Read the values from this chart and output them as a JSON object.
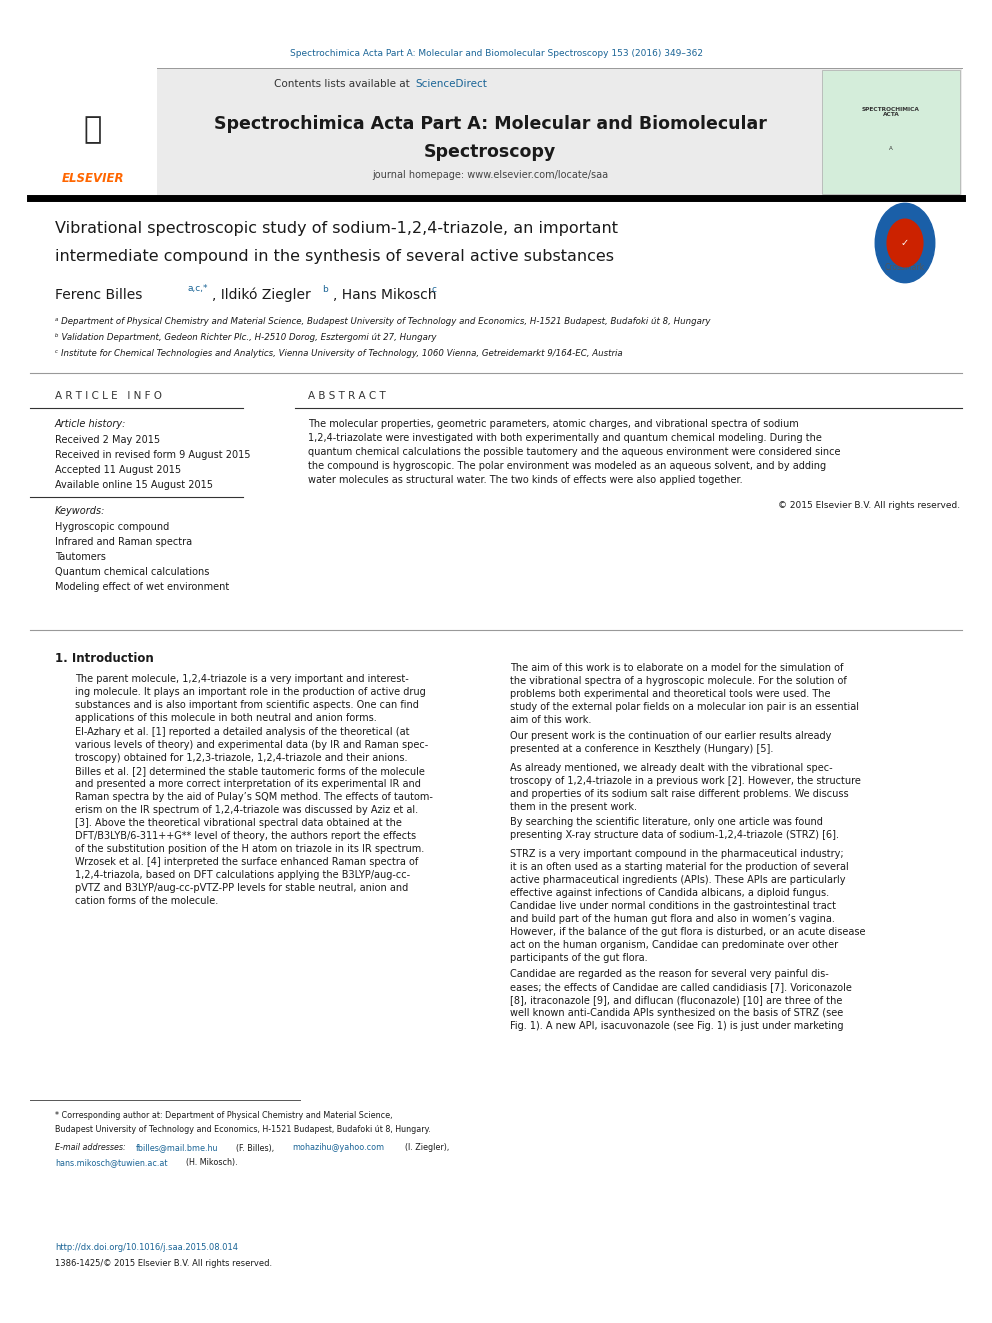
{
  "bg_color": "#ffffff",
  "page_width": 9.92,
  "page_height": 13.23,
  "top_citation": "Spectrochimica Acta Part A: Molecular and Biomolecular Spectroscopy 153 (2016) 349–362",
  "header_bg": "#e8e8e8",
  "journal_homepage": "journal homepage: www.elsevier.com/locate/saa",
  "article_info_title": "A R T I C L E   I N F O",
  "article_history_label": "Article history:",
  "received": "Received 2 May 2015",
  "received_revised": "Received in revised form 9 August 2015",
  "accepted": "Accepted 11 August 2015",
  "available_online": "Available online 15 August 2015",
  "keywords_label": "Keywords:",
  "keywords": [
    "Hygroscopic compound",
    "Infrared and Raman spectra",
    "Tautomers",
    "Quantum chemical calculations",
    "Modeling effect of wet environment"
  ],
  "abstract_title": "A B S T R A C T",
  "copyright": "© 2015 Elsevier B.V. All rights reserved.",
  "affil_a": "ᵃ Department of Physical Chemistry and Material Science, Budapest University of Technology and Economics, H-1521 Budapest, Budafoki út 8, Hungary",
  "affil_b": "ᵇ Validation Department, Gedeon Richter Plc., H-2510 Dorog, Esztergomi út 27, Hungary",
  "affil_c": "ᶜ Institute for Chemical Technologies and Analytics, Vienna University of Technology, 1060 Vienna, Getreidemarkt 9/164-EC, Austria",
  "footnote_star": "* Corresponding author at: Department of Physical Chemistry and Material Science,",
  "footnote_star2": "Budapest University of Technology and Economics, H-1521 Budapest, Budafoki út 8, Hungary.",
  "footnote_email_label": "E-mail addresses:",
  "doi_text": "http://dx.doi.org/10.1016/j.saa.2015.08.014",
  "issn_text": "1386-1425/© 2015 Elsevier B.V. All rights reserved.",
  "elsevier_orange": "#FF6600",
  "link_color": "#1a6496",
  "top_citation_color": "#1a6496",
  "abstract_lines": [
    "The molecular properties, geometric parameters, atomic charges, and vibrational spectra of sodium",
    "1,2,4-triazolate were investigated with both experimentally and quantum chemical modeling. During the",
    "quantum chemical calculations the possible tautomery and the aqueous environment were considered since",
    "the compound is hygroscopic. The polar environment was modeled as an aqueous solvent, and by adding",
    "water molecules as structural water. The two kinds of effects were also applied together."
  ],
  "intro_p1_lines": [
    "The parent molecule, 1,2,4-triazole is a very important and interest-",
    "ing molecule. It plays an important role in the production of active drug",
    "substances and is also important from scientific aspects. One can find",
    "applications of this molecule in both neutral and anion forms."
  ],
  "intro_p2_lines": [
    "El-Azhary et al. [1] reported a detailed analysis of the theoretical (at",
    "various levels of theory) and experimental data (by IR and Raman spec-",
    "troscopy) obtained for 1,2,3-triazole, 1,2,4-triazole and their anions.",
    "Billes et al. [2] determined the stable tautomeric forms of the molecule",
    "and presented a more correct interpretation of its experimental IR and",
    "Raman spectra by the aid of Pulay’s SQM method. The effects of tautom-",
    "erism on the IR spectrum of 1,2,4-triazole was discussed by Aziz et al.",
    "[3]. Above the theoretical vibrational spectral data obtained at the",
    "DFT/B3LYB/6-311++G** level of theory, the authors report the effects",
    "of the substitution position of the H atom on triazole in its IR spectrum.",
    "Wrzosek et al. [4] interpreted the surface enhanced Raman spectra of",
    "1,2,4-triazola, based on DFT calculations applying the B3LYP/aug-cc-",
    "pVTZ and B3LYP/aug-cc-pVTZ-PP levels for stable neutral, anion and",
    "cation forms of the molecule."
  ],
  "c2_p1_lines": [
    "The aim of this work is to elaborate on a model for the simulation of",
    "the vibrational spectra of a hygroscopic molecule. For the solution of",
    "problems both experimental and theoretical tools were used. The",
    "study of the external polar fields on a molecular ion pair is an essential",
    "aim of this work."
  ],
  "c2_p2_lines": [
    "Our present work is the continuation of our earlier results already",
    "presented at a conference in Keszthely (Hungary) [5]."
  ],
  "c2_p3_lines": [
    "As already mentioned, we already dealt with the vibrational spec-",
    "troscopy of 1,2,4-triazole in a previous work [2]. However, the structure",
    "and properties of its sodium salt raise different problems. We discuss",
    "them in the present work."
  ],
  "c2_p4_lines": [
    "By searching the scientific literature, only one article was found",
    "presenting X-ray structure data of sodium-1,2,4-triazole (STRZ) [6]."
  ],
  "c2_p5_lines": [
    "STRZ is a very important compound in the pharmaceutical industry;",
    "it is an often used as a starting material for the production of several",
    "active pharmaceutical ingredients (APIs). These APIs are particularly",
    "effective against infections of Candida albicans, a diploid fungus.",
    "Candidae live under normal conditions in the gastrointestinal tract",
    "and build part of the human gut flora and also in women’s vagina.",
    "However, if the balance of the gut flora is disturbed, or an acute disease",
    "act on the human organism, Candidae can predominate over other",
    "participants of the gut flora."
  ],
  "c2_p6_lines": [
    "Candidae are regarded as the reason for several very painful dis-",
    "eases; the effects of Candidae are called candidiasis [7]. Voriconazole",
    "[8], itraconazole [9], and diflucan (fluconazole) [10] are three of the",
    "well known anti-Candida APIs synthesized on the basis of STRZ (see",
    "Fig. 1). A new API, isacuvonazole (see Fig. 1) is just under marketing"
  ]
}
